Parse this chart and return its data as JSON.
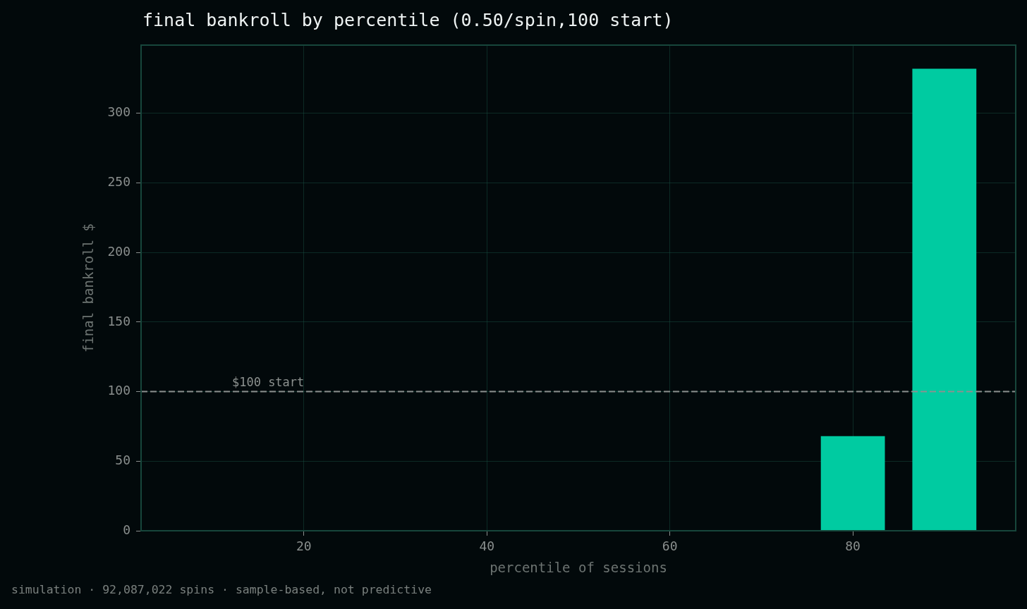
{
  "chart_data": {
    "type": "bar",
    "title": "final bankroll by percentile (0.50/spin,100 start)",
    "xlabel": "percentile of sessions",
    "ylabel": "final bankroll $",
    "x": [
      80,
      90
    ],
    "values": [
      68,
      332
    ],
    "color": "#00cba1",
    "xlim": [
      2.2,
      97.8
    ],
    "xticks": [
      20,
      40,
      60,
      80
    ],
    "ylim": [
      0,
      349
    ],
    "yticks": [
      0,
      50,
      100,
      150,
      200,
      250,
      300
    ],
    "grid": true,
    "ref_lines": [
      {
        "axis": "y",
        "value": 100,
        "label": "$100 start",
        "color": "#8c918f",
        "line_style": "dashed"
      }
    ],
    "annotations": [
      "simulation · 92,087,022 spins · sample-based, not predictive"
    ]
  }
}
